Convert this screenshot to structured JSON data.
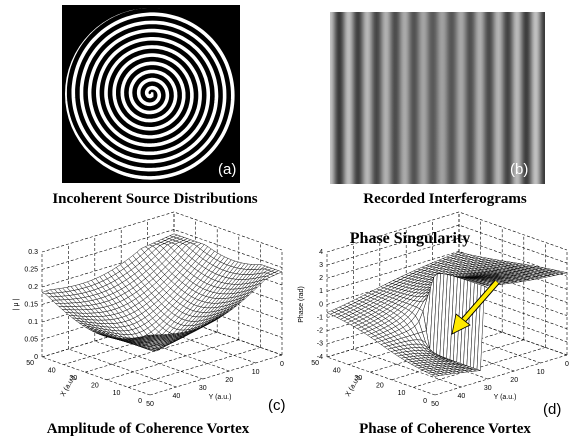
{
  "panels": [
    {
      "label": "(a)",
      "caption": "Incoherent Source Distributions"
    },
    {
      "label": "(b)",
      "caption": "Recorded Interferograms"
    },
    {
      "label": "(c)",
      "caption": "Amplitude of Coherence Vortex",
      "z_axis_label": "| μ |",
      "x_axis_label": "X (a.u.)",
      "y_axis_label": "Y (a.u.)",
      "z_ticks": [
        0,
        0.05,
        0.1,
        0.15,
        0.2,
        0.25,
        0.3
      ],
      "x_ticks": [
        50,
        40,
        30,
        20,
        10,
        0
      ],
      "y_ticks": [
        50,
        40,
        30,
        20,
        10,
        0
      ]
    },
    {
      "label": "(d)",
      "caption": "Phase of Coherence Vortex",
      "annotation": "Phase Singularity",
      "z_axis_label": "Phase (rad)",
      "x_axis_label": "X (a.u.)",
      "y_axis_label": "Y (a.u.)",
      "z_ticks": [
        -4,
        -3,
        -2,
        -1,
        0,
        1,
        2,
        3,
        4
      ],
      "x_ticks": [
        50,
        40,
        30,
        20,
        10,
        0
      ],
      "y_ticks": [
        50,
        40,
        30,
        20,
        10,
        0
      ]
    }
  ]
}
